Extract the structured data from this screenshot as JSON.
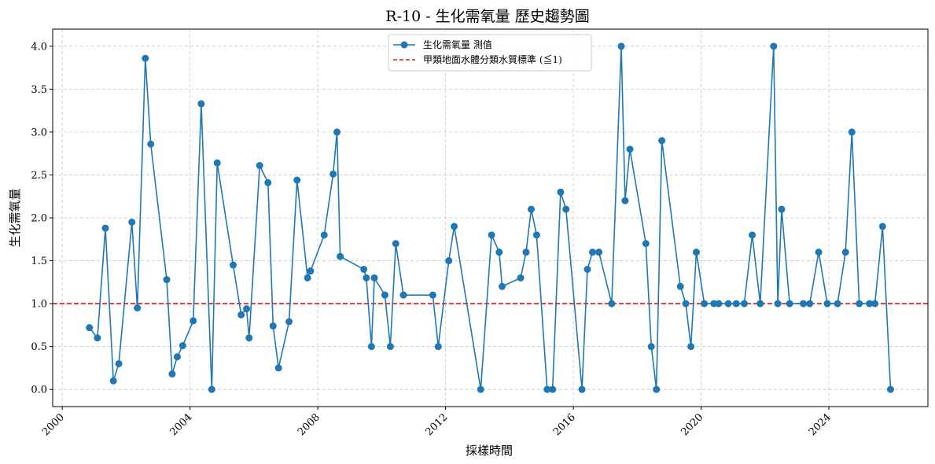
{
  "chart_data": {
    "type": "line",
    "title": "R-10 - 生化需氧量 歷史趨勢圖",
    "xlabel": "採樣時間",
    "ylabel": "生化需氧量",
    "xlim": [
      1999.7,
      2027.1
    ],
    "ylim": [
      -0.2,
      4.2
    ],
    "x_ticks": [
      2000,
      2004,
      2008,
      2012,
      2016,
      2020,
      2024
    ],
    "x_tick_labels": [
      "2000",
      "2004",
      "2008",
      "2012",
      "2016",
      "2020",
      "2024"
    ],
    "y_ticks": [
      0.0,
      0.5,
      1.0,
      1.5,
      2.0,
      2.5,
      3.0,
      3.5,
      4.0
    ],
    "y_tick_labels": [
      "0.0",
      "0.5",
      "1.0",
      "1.5",
      "2.0",
      "2.5",
      "3.0",
      "3.5",
      "4.0"
    ],
    "grid": true,
    "legend_position": "top-center",
    "series": [
      {
        "name": "生化需氧量 測值",
        "color": "#1f77b4",
        "x": [
          2000.85,
          2001.1,
          2001.35,
          2001.6,
          2001.77,
          2002.18,
          2002.35,
          2002.6,
          2002.77,
          2003.27,
          2003.44,
          2003.6,
          2003.77,
          2004.1,
          2004.35,
          2004.68,
          2004.85,
          2005.35,
          2005.6,
          2005.77,
          2005.85,
          2006.18,
          2006.44,
          2006.6,
          2006.77,
          2007.1,
          2007.35,
          2007.68,
          2007.77,
          2008.2,
          2008.48,
          2008.6,
          2008.7,
          2009.44,
          2009.52,
          2009.68,
          2009.77,
          2010.1,
          2010.27,
          2010.44,
          2010.68,
          2011.6,
          2011.77,
          2012.1,
          2012.27,
          2013.1,
          2013.44,
          2013.68,
          2013.77,
          2014.35,
          2014.52,
          2014.68,
          2014.85,
          2015.18,
          2015.35,
          2015.6,
          2015.77,
          2016.27,
          2016.44,
          2016.6,
          2016.8,
          2017.2,
          2017.5,
          2017.62,
          2017.77,
          2018.27,
          2018.44,
          2018.6,
          2018.77,
          2019.35,
          2019.52,
          2019.68,
          2019.85,
          2020.1,
          2020.4,
          2020.55,
          2020.85,
          2021.1,
          2021.35,
          2021.6,
          2021.85,
          2022.27,
          2022.4,
          2022.52,
          2022.77,
          2023.2,
          2023.4,
          2023.68,
          2023.95,
          2024.27,
          2024.52,
          2024.72,
          2024.95,
          2025.27,
          2025.44,
          2025.68,
          2025.93
        ],
        "values": [
          0.72,
          0.6,
          1.88,
          0.1,
          0.3,
          1.95,
          0.95,
          3.86,
          2.86,
          1.28,
          0.18,
          0.38,
          0.51,
          0.8,
          3.33,
          0.0,
          2.64,
          1.45,
          0.87,
          0.94,
          0.6,
          2.61,
          2.41,
          0.74,
          0.25,
          0.79,
          2.44,
          1.3,
          1.38,
          1.8,
          2.51,
          3.0,
          1.55,
          1.4,
          1.3,
          0.5,
          1.3,
          1.1,
          0.5,
          1.7,
          1.1,
          1.1,
          0.5,
          1.5,
          1.9,
          0.0,
          1.8,
          1.6,
          1.2,
          1.3,
          1.6,
          2.1,
          1.8,
          0.0,
          0.0,
          2.3,
          2.1,
          0.0,
          1.4,
          1.6,
          1.6,
          1.0,
          4.0,
          2.2,
          2.8,
          1.7,
          0.5,
          0.0,
          2.9,
          1.2,
          1.0,
          0.5,
          1.6,
          1.0,
          1.0,
          1.0,
          1.0,
          1.0,
          1.0,
          1.8,
          1.0,
          4.0,
          1.0,
          2.1,
          1.0,
          1.0,
          1.0,
          1.6,
          1.0,
          1.0,
          1.6,
          3.0,
          1.0,
          1.0,
          1.0,
          1.9,
          0.0
        ]
      },
      {
        "name": "甲類地面水體分類水質標準 (≦1)",
        "color": "#d62728",
        "style": "dashed",
        "y": 1.0
      }
    ]
  }
}
